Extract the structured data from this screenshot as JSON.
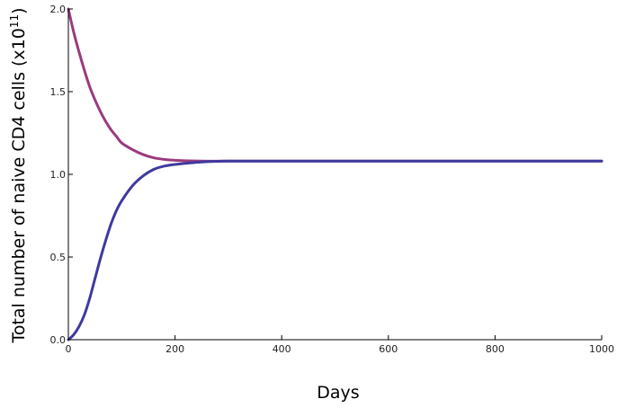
{
  "chart_data": {
    "type": "line",
    "title": "",
    "xlabel": "Days",
    "ylabel": "Total number of naive CD4 cells (x10",
    "ylabel_exponent": "11",
    "ylabel_close": ")",
    "xlim": [
      0,
      1000
    ],
    "ylim": [
      0,
      2.0
    ],
    "x_ticks": [
      0,
      200,
      400,
      600,
      800,
      1000
    ],
    "y_ticks": [
      "0.0",
      "0.5",
      "1.0",
      "1.5",
      "2.0"
    ],
    "grid": false,
    "legend": "none",
    "series": [
      {
        "color": "#9b3a7e",
        "x": [
          0,
          10,
          20,
          30,
          40,
          50,
          60,
          70,
          80,
          90,
          100,
          120,
          140,
          160,
          180,
          200,
          250,
          300,
          400,
          600,
          800,
          1000
        ],
        "y": [
          2.0,
          1.86,
          1.74,
          1.63,
          1.53,
          1.45,
          1.38,
          1.32,
          1.27,
          1.23,
          1.19,
          1.15,
          1.12,
          1.1,
          1.09,
          1.085,
          1.08,
          1.08,
          1.08,
          1.08,
          1.08,
          1.08
        ]
      },
      {
        "color": "#3f3a9e",
        "x": [
          0,
          10,
          20,
          30,
          40,
          50,
          60,
          70,
          80,
          90,
          100,
          120,
          140,
          160,
          180,
          200,
          250,
          300,
          400,
          600,
          800,
          1000
        ],
        "y": [
          0.0,
          0.03,
          0.08,
          0.15,
          0.25,
          0.37,
          0.49,
          0.6,
          0.7,
          0.78,
          0.84,
          0.93,
          0.99,
          1.03,
          1.05,
          1.06,
          1.075,
          1.08,
          1.08,
          1.08,
          1.08,
          1.08
        ]
      }
    ]
  }
}
